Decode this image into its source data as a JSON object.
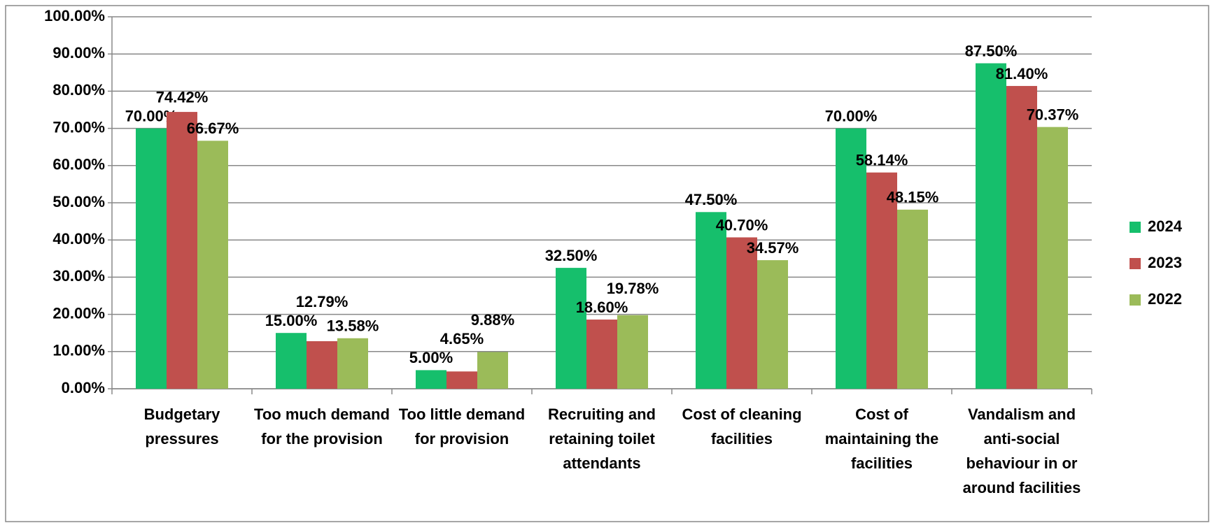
{
  "chart_data": {
    "type": "bar",
    "categories": [
      "Budgetary pressures",
      "Too much demand for the provision",
      "Too little demand for provision",
      "Recruiting and retaining toilet attendants",
      "Cost of cleaning facilities",
      "Cost of maintaining the facilities",
      "Vandalism and anti-social behaviour in or around facilities"
    ],
    "series": [
      {
        "name": "2024",
        "color": "#16bf6c",
        "values": [
          70,
          15,
          5,
          32.5,
          47.5,
          70,
          87.5
        ],
        "value_labels": [
          "70.00%",
          "15.00%",
          "5.00%",
          "32.50%",
          "47.50%",
          "70.00%",
          "87.50%"
        ]
      },
      {
        "name": "2023",
        "color": "#c0504d",
        "values": [
          74.42,
          12.79,
          4.65,
          18.6,
          40.7,
          58.14,
          81.4
        ],
        "value_labels": [
          "74.42%",
          "12.79%",
          "4.65%",
          "18.60%",
          "40.70%",
          "58.14%",
          "81.40%"
        ]
      },
      {
        "name": "2022",
        "color": "#9bbb59",
        "values": [
          66.67,
          13.58,
          9.88,
          19.78,
          34.57,
          48.15,
          70.37
        ],
        "value_labels": [
          "66.67%",
          "13.58%",
          "9.88%",
          "19.78%",
          "34.57%",
          "48.15%",
          "70.37%"
        ]
      }
    ],
    "ylim": [
      0,
      100
    ],
    "yticks": [
      {
        "value": 0,
        "label": "0.00%"
      },
      {
        "value": 10,
        "label": "10.00%"
      },
      {
        "value": 20,
        "label": "20.00%"
      },
      {
        "value": 30,
        "label": "30.00%"
      },
      {
        "value": 40,
        "label": "40.00%"
      },
      {
        "value": 50,
        "label": "50.00%"
      },
      {
        "value": 60,
        "label": "60.00%"
      },
      {
        "value": 70,
        "label": "70.00%"
      },
      {
        "value": 80,
        "label": "80.00%"
      },
      {
        "value": 90,
        "label": "90.00%"
      },
      {
        "value": 100,
        "label": "100.00%"
      }
    ],
    "grid": true,
    "legend": "right"
  }
}
